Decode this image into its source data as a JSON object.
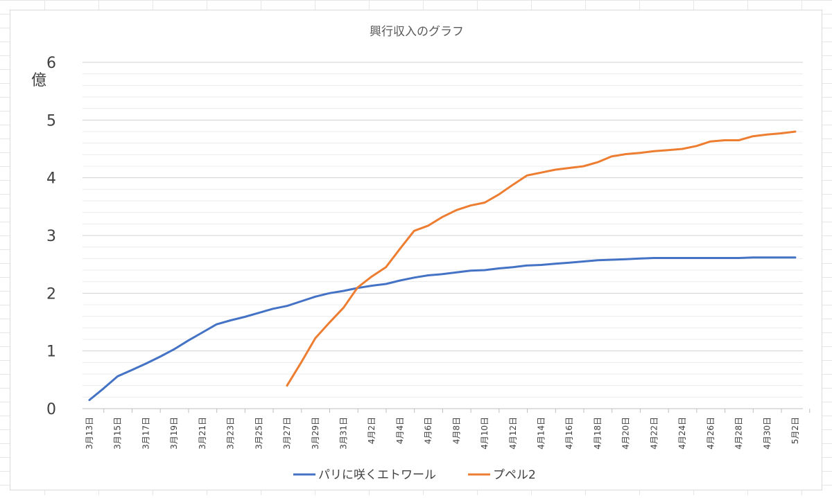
{
  "chart_data": {
    "type": "line",
    "title": "興行収入のグラフ",
    "ylabel": "億",
    "ylim": [
      0,
      6
    ],
    "yticks": [
      0,
      1,
      2,
      3,
      4,
      5,
      6
    ],
    "grid": true,
    "legend_position": "bottom",
    "x": [
      "3月13日",
      "3月14日",
      "3月15日",
      "3月16日",
      "3月17日",
      "3月18日",
      "3月19日",
      "3月20日",
      "3月21日",
      "3月22日",
      "3月23日",
      "3月24日",
      "3月25日",
      "3月26日",
      "3月27日",
      "3月28日",
      "3月29日",
      "3月30日",
      "3月31日",
      "4月1日",
      "4月2日",
      "4月3日",
      "4月4日",
      "4月5日",
      "4月6日",
      "4月7日",
      "4月8日",
      "4月9日",
      "4月10日",
      "4月11日",
      "4月12日",
      "4月13日",
      "4月14日",
      "4月15日",
      "4月16日",
      "4月17日",
      "4月18日",
      "4月19日",
      "4月20日",
      "4月21日",
      "4月22日",
      "4月23日",
      "4月24日",
      "4月25日",
      "4月26日",
      "4月27日",
      "4月28日",
      "4月29日",
      "4月30日",
      "5月1日",
      "5月2日"
    ],
    "x_tick_labels": [
      "3月13日",
      "3月15日",
      "3月17日",
      "3月19日",
      "3月21日",
      "3月23日",
      "3月25日",
      "3月27日",
      "3月29日",
      "3月31日",
      "4月2日",
      "4月4日",
      "4月6日",
      "4月8日",
      "4月10日",
      "4月12日",
      "4月14日",
      "4月16日",
      "4月18日",
      "4月20日",
      "4月22日",
      "4月24日",
      "4月26日",
      "4月28日",
      "4月30日",
      "5月2日"
    ],
    "series": [
      {
        "name": "パリに咲くエトワール",
        "color": "#4472c4",
        "values": [
          0.15,
          0.35,
          0.56,
          0.67,
          0.78,
          0.9,
          1.03,
          1.18,
          1.32,
          1.46,
          1.53,
          1.59,
          1.66,
          1.73,
          1.78,
          1.86,
          1.94,
          2.0,
          2.04,
          2.09,
          2.13,
          2.16,
          2.22,
          2.27,
          2.31,
          2.33,
          2.36,
          2.39,
          2.4,
          2.43,
          2.45,
          2.48,
          2.49,
          2.51,
          2.53,
          2.55,
          2.57,
          2.58,
          2.59,
          2.6,
          2.61,
          2.61,
          2.61,
          2.61,
          2.61,
          2.61,
          2.61,
          2.62,
          2.62,
          2.62,
          2.62
        ]
      },
      {
        "name": "プペル2",
        "color": "#ed7d31",
        "values": [
          null,
          null,
          null,
          null,
          null,
          null,
          null,
          null,
          null,
          null,
          null,
          null,
          null,
          null,
          0.4,
          0.8,
          1.22,
          1.49,
          1.75,
          2.1,
          2.29,
          2.45,
          2.77,
          3.08,
          3.17,
          3.32,
          3.44,
          3.52,
          3.57,
          3.71,
          3.88,
          4.04,
          4.09,
          4.14,
          4.17,
          4.2,
          4.27,
          4.37,
          4.41,
          4.43,
          4.46,
          4.48,
          4.5,
          4.55,
          4.63,
          4.65,
          4.65,
          4.72,
          4.75,
          4.77,
          4.8
        ]
      }
    ]
  }
}
